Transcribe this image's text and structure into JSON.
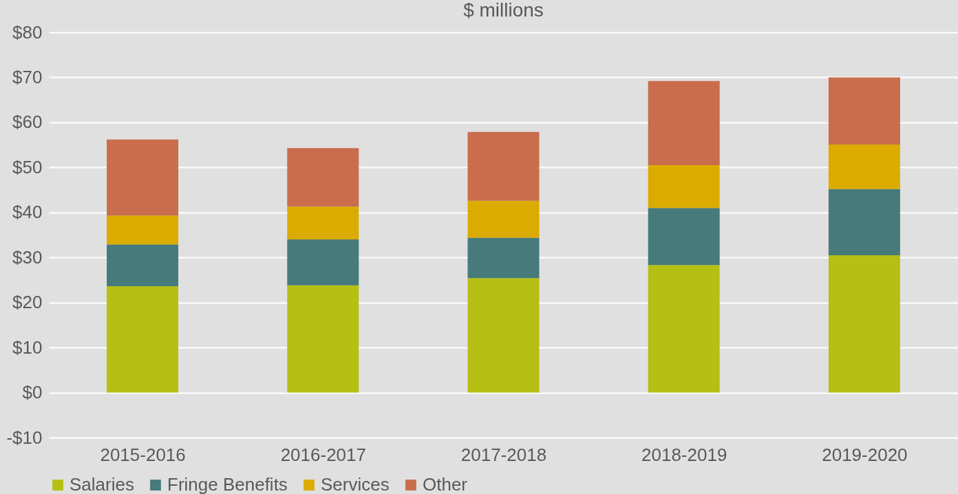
{
  "chart_data": {
    "type": "bar",
    "title": "$ millions",
    "stacked": true,
    "categories": [
      "2015-2016",
      "2016-2017",
      "2017-2018",
      "2018-2019",
      "2019-2020"
    ],
    "series": [
      {
        "name": "Salaries",
        "color": "#b5bf14",
        "values": [
          23.6,
          23.8,
          25.4,
          28.3,
          30.5
        ]
      },
      {
        "name": "Fringe Benefits",
        "color": "#477a7a",
        "values": [
          9.3,
          10.2,
          9.0,
          12.7,
          14.7
        ]
      },
      {
        "name": "Services",
        "color": "#dbab00",
        "values": [
          6.4,
          7.3,
          8.2,
          9.5,
          9.9
        ]
      },
      {
        "name": "Other",
        "color": "#c96d4d",
        "values": [
          16.9,
          13.0,
          15.3,
          18.7,
          14.9
        ]
      }
    ],
    "ylim": [
      -10,
      80
    ],
    "yticks": [
      {
        "value": -10,
        "label": "-$10"
      },
      {
        "value": 0,
        "label": "$0"
      },
      {
        "value": 10,
        "label": "$10"
      },
      {
        "value": 20,
        "label": "$20"
      },
      {
        "value": 30,
        "label": "$30"
      },
      {
        "value": 40,
        "label": "$40"
      },
      {
        "value": 50,
        "label": "$50"
      },
      {
        "value": 60,
        "label": "$60"
      },
      {
        "value": 70,
        "label": "$70"
      },
      {
        "value": 80,
        "label": "$80"
      }
    ],
    "grid": "y",
    "legend": "bottom"
  }
}
